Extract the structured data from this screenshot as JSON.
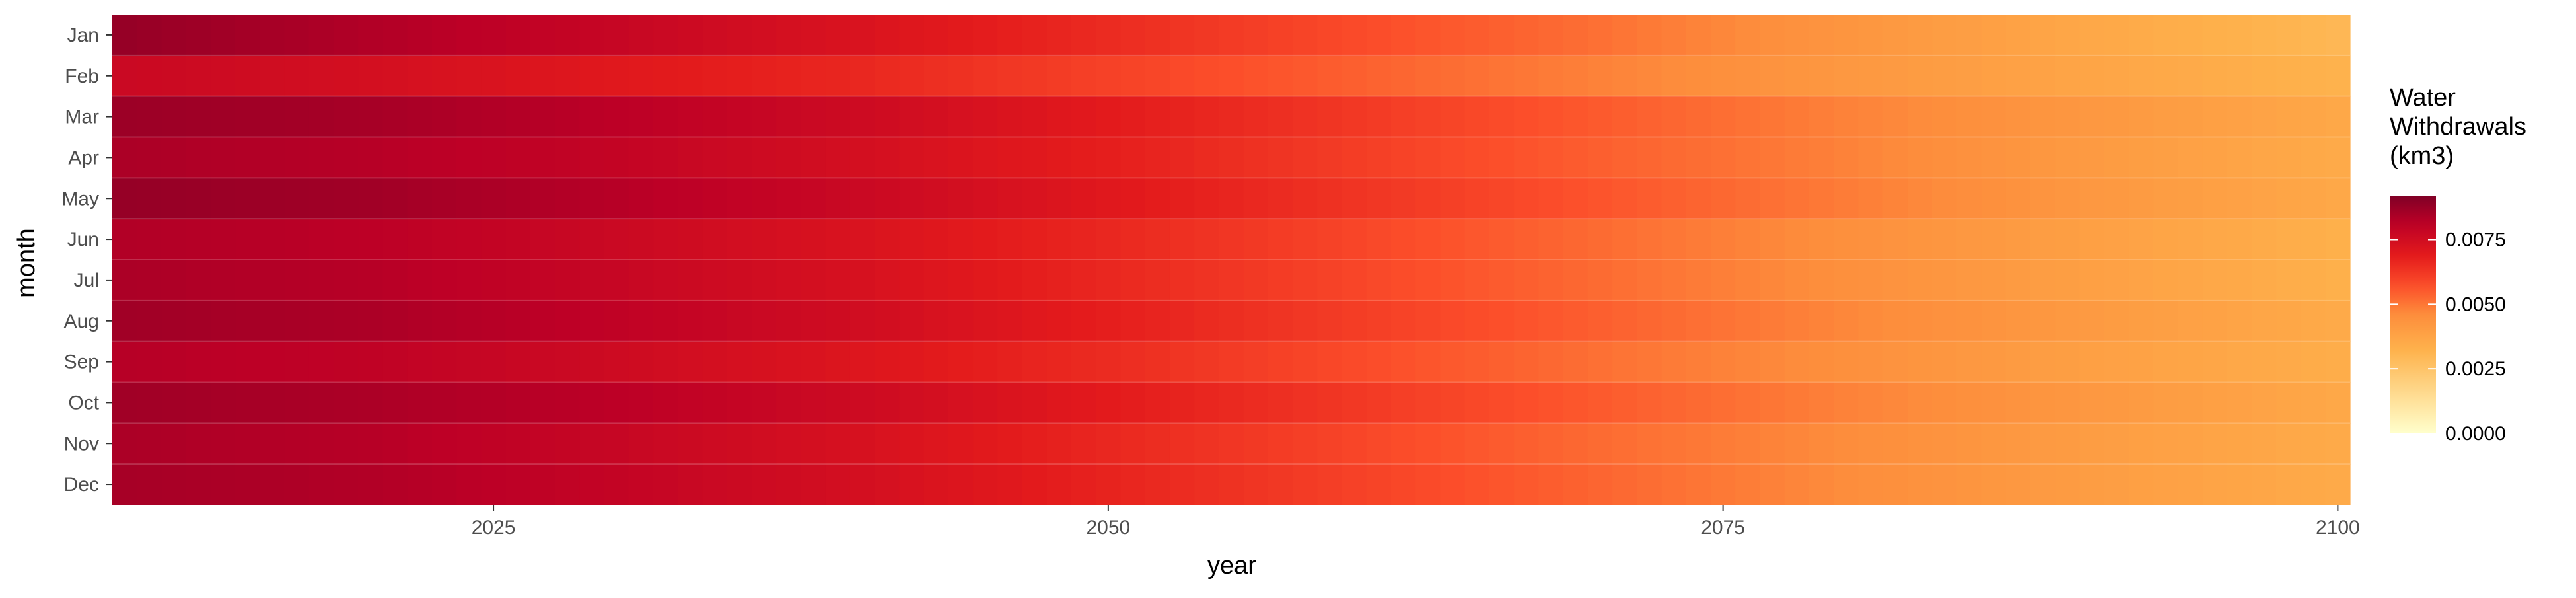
{
  "chart_data": {
    "type": "heatmap",
    "title": "",
    "xlabel": "year",
    "ylabel": "month",
    "xlim": [
      2010,
      2100
    ],
    "x_ticks": [
      2025,
      2050,
      2075,
      2100
    ],
    "months": [
      "Jan",
      "Feb",
      "Mar",
      "Apr",
      "May",
      "Jun",
      "Jul",
      "Aug",
      "Sep",
      "Oct",
      "Nov",
      "Dec"
    ],
    "legend": {
      "title_lines": [
        "Water",
        "Withdrawals",
        "(km3)"
      ],
      "breaks": [
        0.0,
        0.0025,
        0.005,
        0.0075
      ],
      "break_labels": [
        "0.0000",
        "0.0025",
        "0.0050",
        "0.0075"
      ],
      "limits": [
        0,
        0.0092
      ],
      "position": "right"
    },
    "colors": {
      "low": "#ffffcc",
      "mid_low": "#feb24c",
      "mid": "#fd8d3c",
      "mid_high": "#fc4e2a",
      "high_mid": "#e31a1c",
      "high": "#bd0026",
      "top": "#800026",
      "grid": "#ebebeb"
    },
    "series": [
      {
        "month": "Jan",
        "values": [
          0.0088,
          0.0083,
          0.0078,
          0.0072,
          0.0065,
          0.0058,
          0.0051,
          0.0043,
          0.0036,
          0.003
        ]
      },
      {
        "month": "Feb",
        "values": [
          0.0077,
          0.0074,
          0.007,
          0.0066,
          0.006,
          0.0054,
          0.0048,
          0.0042,
          0.0037,
          0.0032
        ]
      },
      {
        "month": "Mar",
        "values": [
          0.0087,
          0.0085,
          0.0081,
          0.0076,
          0.0069,
          0.0062,
          0.0055,
          0.0048,
          0.0042,
          0.0036
        ]
      },
      {
        "month": "Apr",
        "values": [
          0.0084,
          0.0082,
          0.0079,
          0.0074,
          0.0068,
          0.0061,
          0.0054,
          0.0048,
          0.0041,
          0.0035
        ]
      },
      {
        "month": "May",
        "values": [
          0.0088,
          0.0086,
          0.0082,
          0.0077,
          0.007,
          0.0063,
          0.0056,
          0.0049,
          0.0042,
          0.0036
        ]
      },
      {
        "month": "Jun",
        "values": [
          0.0083,
          0.0081,
          0.0077,
          0.0072,
          0.0066,
          0.0059,
          0.0052,
          0.0045,
          0.0039,
          0.0033
        ]
      },
      {
        "month": "Jul",
        "values": [
          0.0084,
          0.0082,
          0.0078,
          0.0073,
          0.0066,
          0.0059,
          0.0052,
          0.0045,
          0.0039,
          0.0033
        ]
      },
      {
        "month": "Aug",
        "values": [
          0.0086,
          0.0084,
          0.008,
          0.0075,
          0.0068,
          0.0061,
          0.0054,
          0.0047,
          0.0041,
          0.0035
        ]
      },
      {
        "month": "Sep",
        "values": [
          0.0082,
          0.008,
          0.0076,
          0.0071,
          0.0065,
          0.0058,
          0.0051,
          0.0045,
          0.0039,
          0.0034
        ]
      },
      {
        "month": "Oct",
        "values": [
          0.0086,
          0.0084,
          0.0081,
          0.0076,
          0.0069,
          0.0062,
          0.0055,
          0.0048,
          0.0042,
          0.0036
        ]
      },
      {
        "month": "Nov",
        "values": [
          0.0084,
          0.0082,
          0.0078,
          0.0073,
          0.0066,
          0.0059,
          0.0052,
          0.0046,
          0.004,
          0.0035
        ]
      },
      {
        "month": "Dec",
        "values": [
          0.0085,
          0.0083,
          0.0079,
          0.0074,
          0.0067,
          0.006,
          0.0053,
          0.0046,
          0.004,
          0.0035
        ]
      }
    ],
    "series_x": [
      2010,
      2020,
      2030,
      2040,
      2050,
      2060,
      2070,
      2080,
      2090,
      2100
    ],
    "year_start": 2010,
    "year_end": 2100,
    "grid": true
  }
}
